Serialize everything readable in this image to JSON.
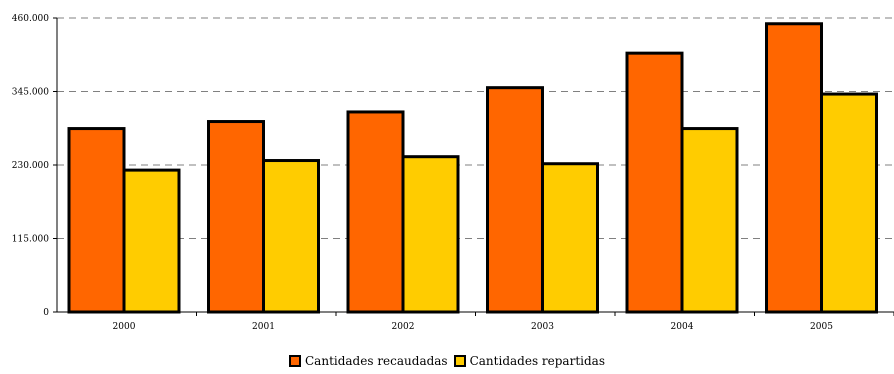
{
  "chart_data": {
    "type": "bar",
    "title": "",
    "xlabel": "",
    "ylabel": "",
    "categories": [
      "2000",
      "2001",
      "2002",
      "2003",
      "2004",
      "2005"
    ],
    "series": [
      {
        "name": "Cantidades recaudadas",
        "color": "#ff6600",
        "values": [
          287000,
          298000,
          313000,
          351000,
          405000,
          451000
        ]
      },
      {
        "name": "Cantidades repartidas",
        "color": "#ffcc00",
        "values": [
          222000,
          237000,
          243000,
          232000,
          287000,
          341000
        ]
      }
    ],
    "y_ticks": [
      {
        "value": 0,
        "label": "0"
      },
      {
        "value": 115000,
        "label": "115.000"
      },
      {
        "value": 230000,
        "label": "230.000"
      },
      {
        "value": 345000,
        "label": "345.000"
      },
      {
        "value": 460000,
        "label": "460.000"
      }
    ],
    "ylim": [
      0,
      460000
    ],
    "grid": true,
    "grid_style": "dashed",
    "legend_position": "bottom"
  }
}
